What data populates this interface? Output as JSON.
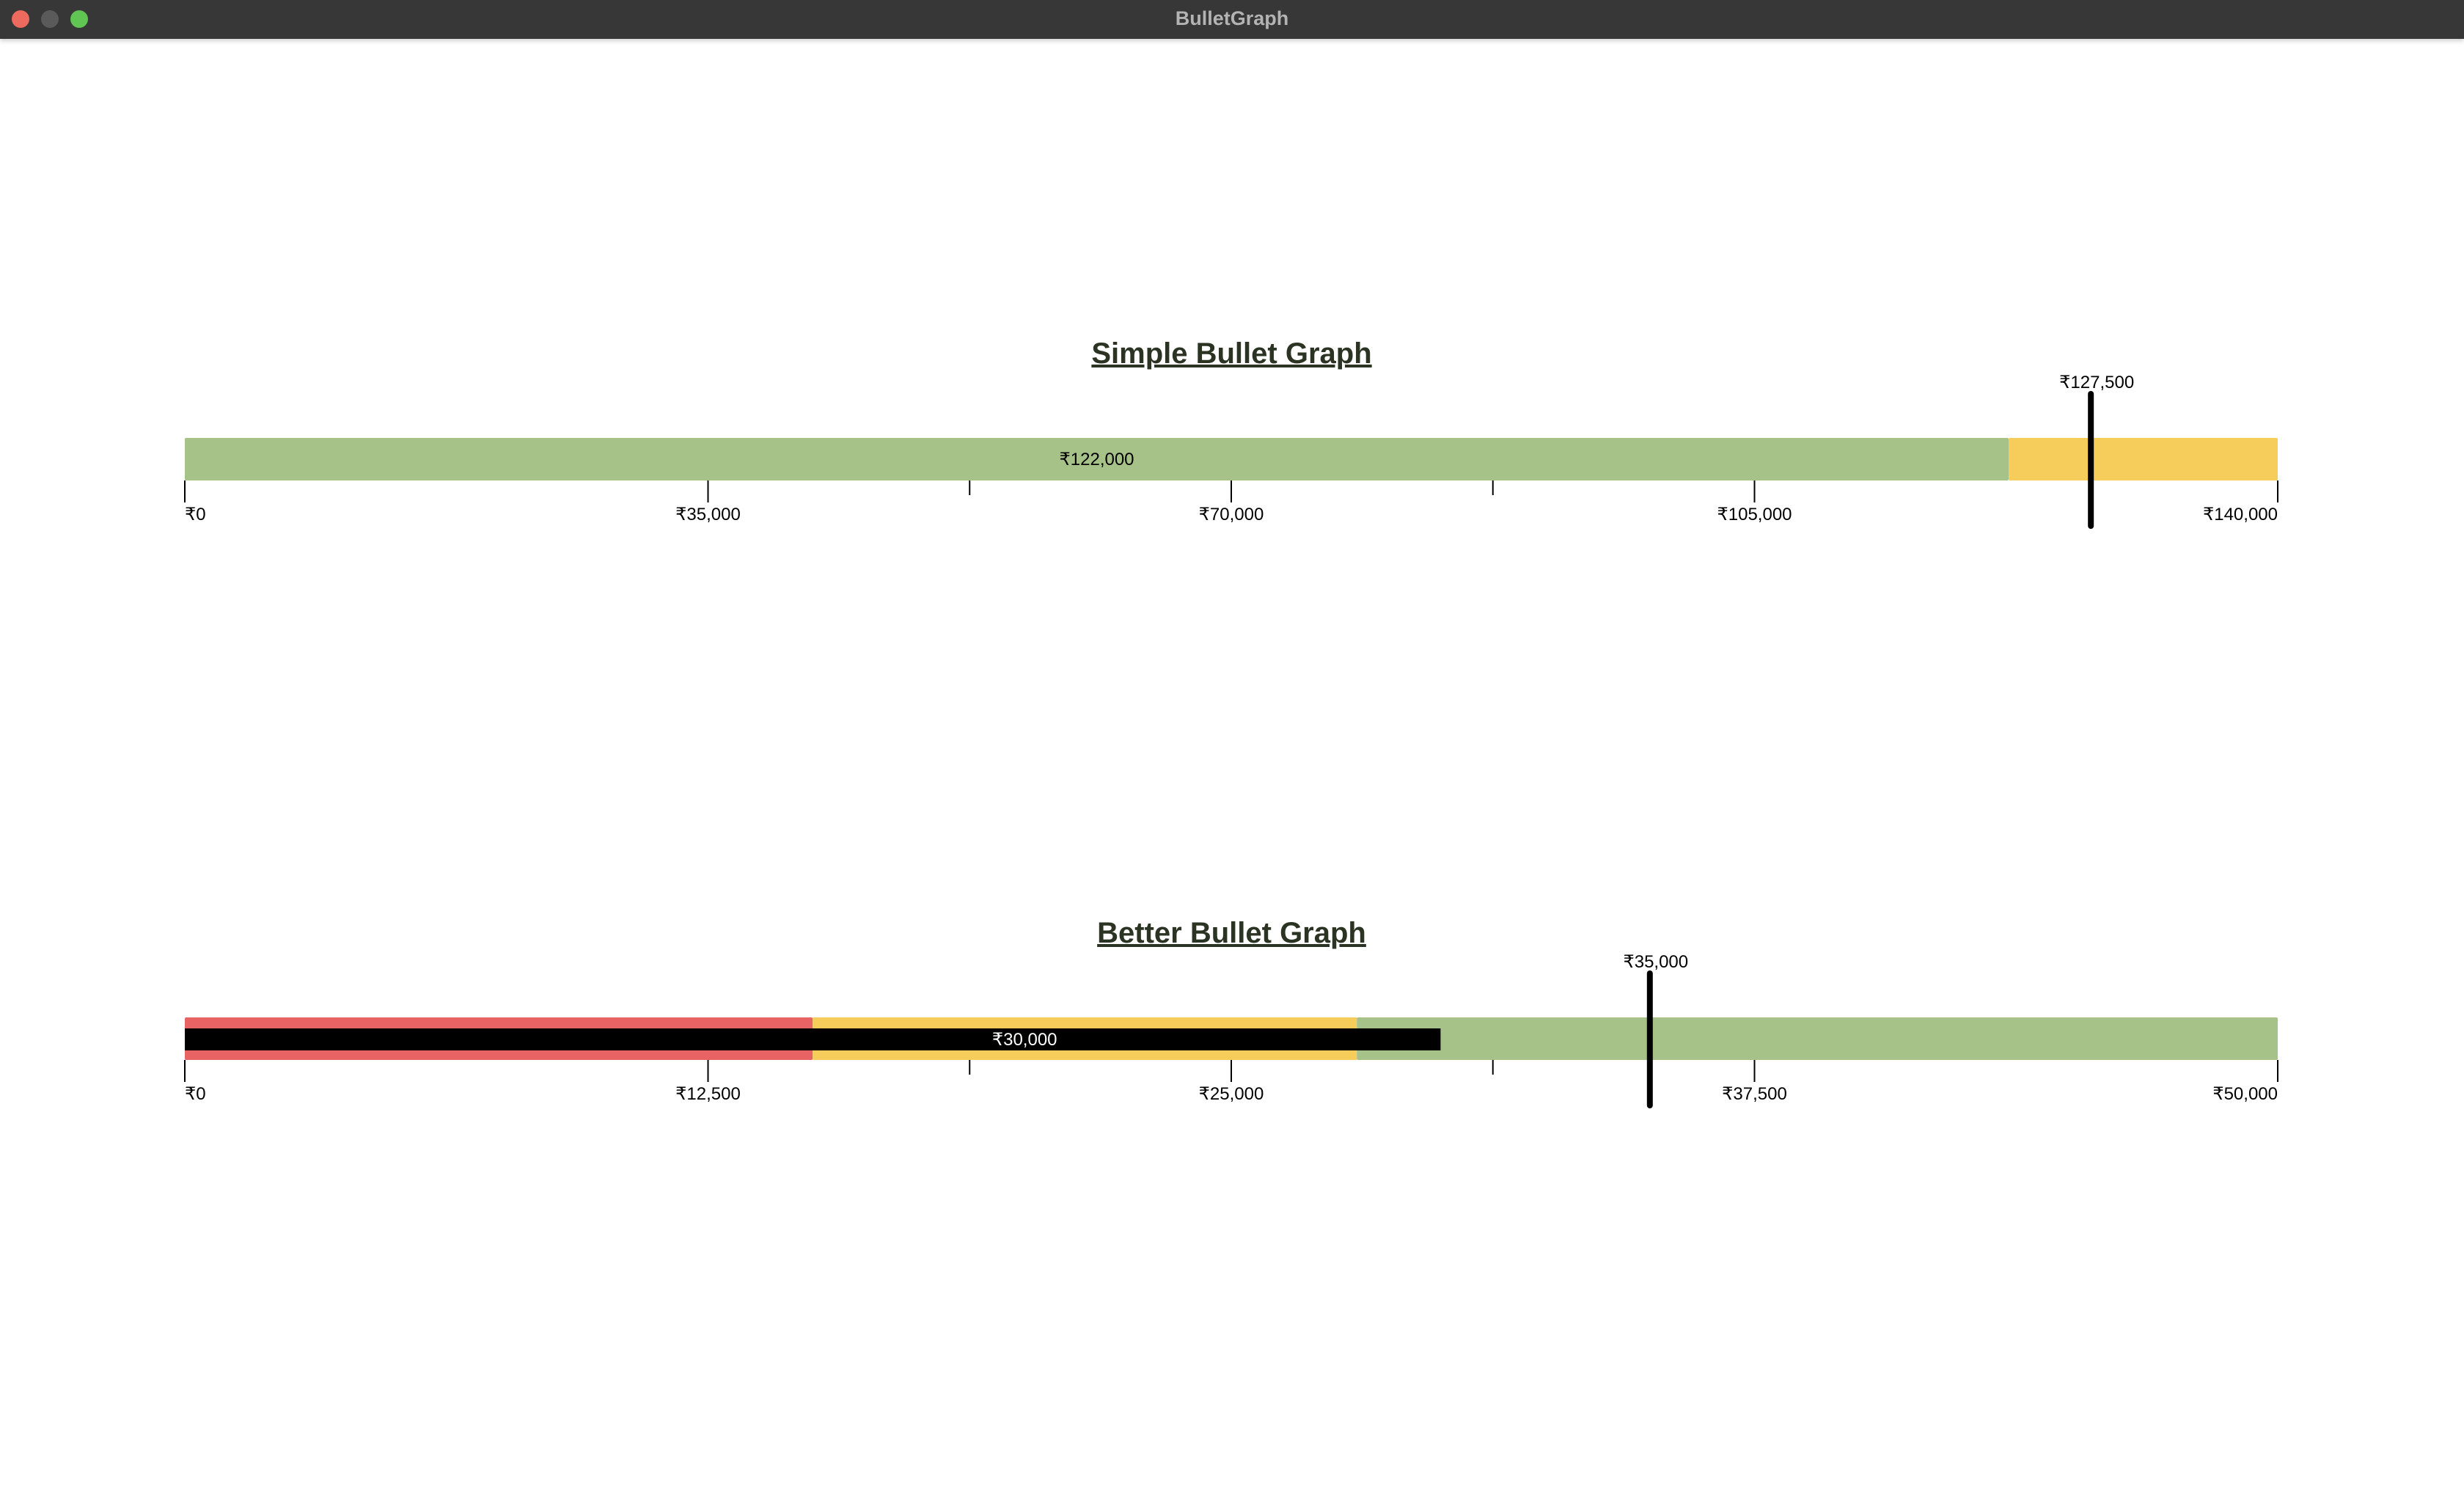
{
  "window": {
    "title": "BulletGraph"
  },
  "colors": {
    "green": "#a6c288",
    "yellow": "#f6cc5a",
    "red": "#e86464",
    "black": "#000000",
    "title": "#2b3323"
  },
  "chart_data": [
    {
      "type": "bullet",
      "title": "Simple Bullet Graph",
      "range": [
        0,
        140000
      ],
      "ticks": [
        0,
        35000,
        70000,
        105000,
        140000
      ],
      "tick_labels": [
        "₹0",
        "₹35,000",
        "₹70,000",
        "₹105,000",
        "₹140,000"
      ],
      "minor_ticks": [
        52500,
        87500
      ],
      "bands": [
        {
          "from": 0,
          "to": 122000,
          "color": "#a6c288"
        },
        {
          "from": 122000,
          "to": 140000,
          "color": "#f6cc5a"
        }
      ],
      "value": 122000,
      "value_label": "₹122,000",
      "value_style": "band",
      "target": 127500,
      "target_label": "₹127,500"
    },
    {
      "type": "bullet",
      "title": "Better Bullet Graph",
      "range": [
        0,
        50000
      ],
      "ticks": [
        0,
        12500,
        25000,
        37500,
        50000
      ],
      "tick_labels": [
        "₹0",
        "₹12,500",
        "₹25,000",
        "₹37,500",
        "₹50,000"
      ],
      "minor_ticks": [
        18750,
        31250
      ],
      "bands": [
        {
          "from": 0,
          "to": 15000,
          "color": "#e86464"
        },
        {
          "from": 15000,
          "to": 28000,
          "color": "#f6cc5a"
        },
        {
          "from": 28000,
          "to": 50000,
          "color": "#a6c288"
        }
      ],
      "value": 30000,
      "value_label": "₹30,000",
      "value_style": "bar",
      "target": 35000,
      "target_label": "₹35,000"
    }
  ]
}
